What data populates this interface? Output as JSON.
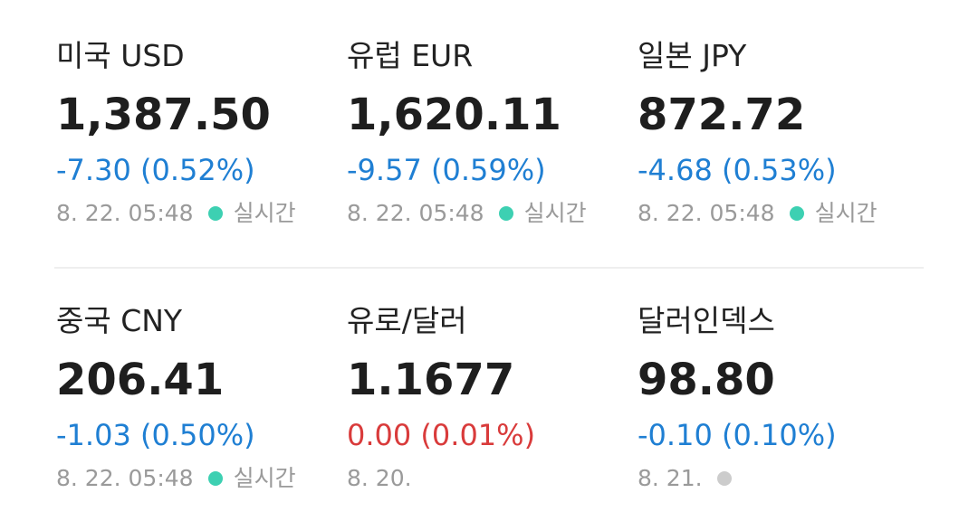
{
  "items": [
    {
      "name": "미국 USD",
      "price": "1,387.50",
      "change": "-7.30 (0.52%)",
      "change_color": "#1f7fd3",
      "date": "8. 22. 05:48",
      "dot_color": "#3dd0b2",
      "status": "실시간"
    },
    {
      "name": "유럽 EUR",
      "price": "1,620.11",
      "change": "-9.57 (0.59%)",
      "change_color": "#1f7fd3",
      "date": "8. 22. 05:48",
      "dot_color": "#3dd0b2",
      "status": "실시간"
    },
    {
      "name": "일본 JPY",
      "price": "872.72",
      "change": "-4.68 (0.53%)",
      "change_color": "#1f7fd3",
      "date": "8. 22. 05:48",
      "dot_color": "#3dd0b2",
      "status": "실시간"
    },
    {
      "name": "중국 CNY",
      "price": "206.41",
      "change": "-1.03 (0.50%)",
      "change_color": "#1f7fd3",
      "date": "8. 22. 05:48",
      "dot_color": "#3dd0b2",
      "status": "실시간"
    },
    {
      "name": "유로/달러",
      "price": "1.1677",
      "change": "0.00 (0.01%)",
      "change_color": "#d93b3b",
      "date": "8. 20."
    },
    {
      "name": "달러인덱스",
      "price": "98.80",
      "change": "-0.10 (0.10%)",
      "change_color": "#1f7fd3",
      "date": "8. 21.",
      "dot_color": "#cccccc"
    }
  ]
}
